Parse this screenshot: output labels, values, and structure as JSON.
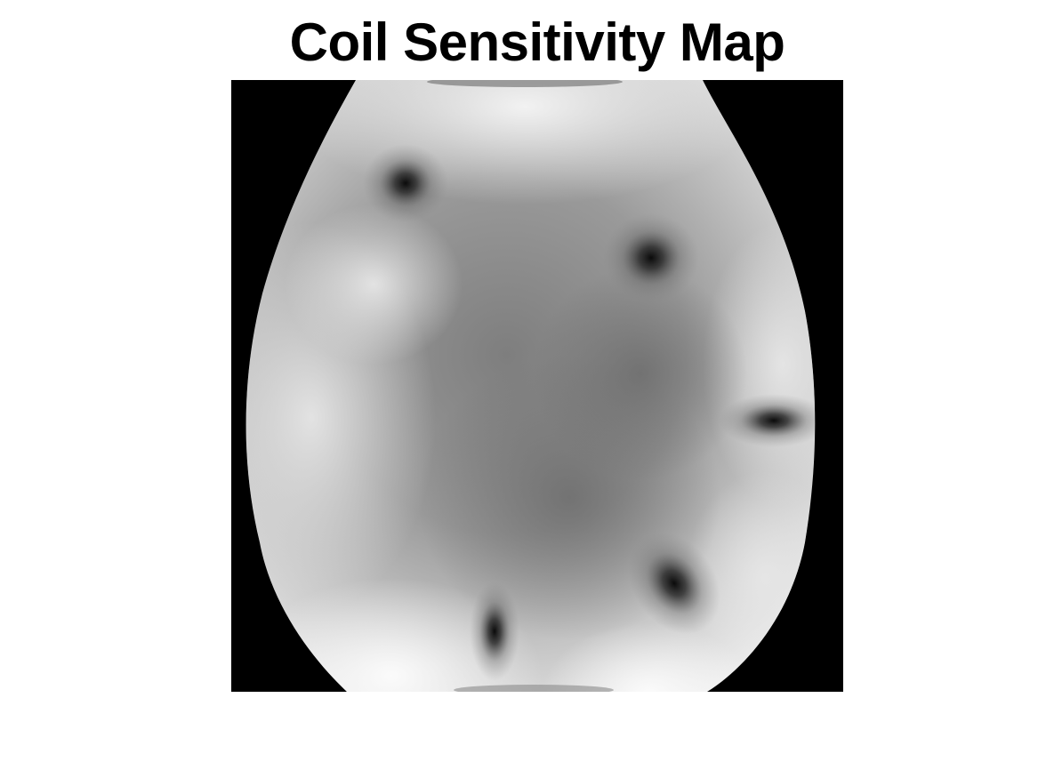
{
  "figure": {
    "title": "Coil Sensitivity Map"
  },
  "image": {
    "colormap": "gray",
    "background_color": "#000000",
    "description_icon": "coil-sensitivity-image"
  }
}
